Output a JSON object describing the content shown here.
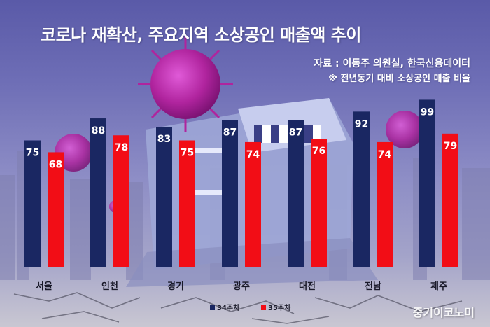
{
  "title": "코로나 재확산, 주요지역 소상공인 매출액 추이",
  "source": "자료 : 이동주 의원실, 한국신용데이터",
  "note": "※ 전년동기 대비 소상공인 매출 비율",
  "watermark": "중기이코노미",
  "colors": {
    "series_34": "#1a2762",
    "series_35": "#f20d16"
  },
  "chart_data": {
    "type": "bar",
    "categories": [
      "서울",
      "인천",
      "경기",
      "광주",
      "대전",
      "전남",
      "제주"
    ],
    "series": [
      {
        "name": "34주차",
        "values": [
          75,
          88,
          83,
          87,
          87,
          92,
          99
        ]
      },
      {
        "name": "35주차",
        "values": [
          68,
          78,
          75,
          74,
          76,
          74,
          79
        ]
      }
    ],
    "title": "코로나 재확산, 주요지역 소상공인 매출액 추이",
    "xlabel": "",
    "ylabel": "",
    "legend": "bottom-center",
    "grid": false
  }
}
